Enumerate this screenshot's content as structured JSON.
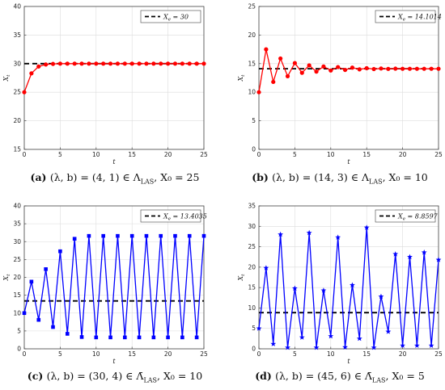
{
  "chart_data": [
    {
      "type": "line",
      "panel_label": "(a)",
      "caption": "(λ, b) = (4, 1) ∈ Λ_LAS, X₀ = 25",
      "xlabel": "t",
      "ylabel": "X_t",
      "xlim": [
        0,
        25
      ],
      "ylim": [
        15,
        40
      ],
      "xticks": [
        0,
        5,
        10,
        15,
        20,
        25
      ],
      "yticks": [
        15,
        20,
        25,
        30,
        35,
        40
      ],
      "grid": true,
      "legend_position": "top-right",
      "legend_label": "X_e = 30",
      "marker": "circle",
      "color": "#ff0000",
      "equilibrium": 30,
      "x": [
        0,
        1,
        2,
        3,
        4,
        5,
        6,
        7,
        8,
        9,
        10,
        11,
        12,
        13,
        14,
        15,
        16,
        17,
        18,
        19,
        20,
        21,
        22,
        23,
        24,
        25
      ],
      "values": [
        25,
        28.3,
        29.5,
        29.85,
        29.95,
        30,
        30,
        30,
        30,
        30,
        30,
        30,
        30,
        30,
        30,
        30,
        30,
        30,
        30,
        30,
        30,
        30,
        30,
        30,
        30,
        30
      ]
    },
    {
      "type": "line",
      "panel_label": "(b)",
      "caption": "(λ, b) = (14, 3) ∈ Λ_LAS, X₀ = 10",
      "xlabel": "t",
      "ylabel": "X_t",
      "xlim": [
        0,
        25
      ],
      "ylim": [
        0,
        25
      ],
      "xticks": [
        0,
        5,
        10,
        15,
        20,
        25
      ],
      "yticks": [
        0,
        5,
        10,
        15,
        20,
        25
      ],
      "grid": true,
      "legend_position": "top-right",
      "legend_label": "X_e = 14.1014",
      "marker": "circle",
      "color": "#ff0000",
      "equilibrium": 14.1014,
      "x": [
        0,
        1,
        2,
        3,
        4,
        5,
        6,
        7,
        8,
        9,
        10,
        11,
        12,
        13,
        14,
        15,
        16,
        17,
        18,
        19,
        20,
        21,
        22,
        23,
        24,
        25
      ],
      "values": [
        10,
        17.5,
        11.8,
        15.9,
        12.8,
        15.1,
        13.4,
        14.7,
        13.6,
        14.5,
        13.8,
        14.4,
        13.9,
        14.3,
        14.0,
        14.2,
        14.05,
        14.15,
        14.08,
        14.12,
        14.1,
        14.1,
        14.1,
        14.1,
        14.1,
        14.1
      ]
    },
    {
      "type": "line",
      "panel_label": "(c)",
      "caption": "(λ, b) = (30, 4) ∈ Λ̄_LAS, X₀ = 10",
      "xlabel": "t",
      "ylabel": "X_t",
      "xlim": [
        0,
        25
      ],
      "ylim": [
        0,
        40
      ],
      "xticks": [
        0,
        5,
        10,
        15,
        20,
        25
      ],
      "yticks": [
        0,
        5,
        10,
        15,
        20,
        25,
        30,
        35,
        40
      ],
      "grid": true,
      "legend_position": "top-right",
      "legend_label": "X_e = 13.4035",
      "marker": "square",
      "color": "#0000ff",
      "equilibrium": 13.4035,
      "x": [
        0,
        1,
        2,
        3,
        4,
        5,
        6,
        7,
        8,
        9,
        10,
        11,
        12,
        13,
        14,
        15,
        16,
        17,
        18,
        19,
        20,
        21,
        22,
        23,
        24,
        25
      ],
      "values": [
        10,
        18.8,
        8.1,
        22.3,
        6.1,
        27.3,
        4.2,
        30.8,
        3.3,
        31.6,
        3.2,
        31.6,
        3.2,
        31.6,
        3.2,
        31.6,
        3.2,
        31.6,
        3.2,
        31.6,
        3.2,
        31.6,
        3.2,
        31.6,
        3.2,
        31.6
      ]
    },
    {
      "type": "line",
      "panel_label": "(d)",
      "caption": "(λ, b) = (45, 6) ∈ Λ̄_LAS, X₀ = 5",
      "xlabel": "t",
      "ylabel": "X_t",
      "xlim": [
        0,
        25
      ],
      "ylim": [
        0,
        35
      ],
      "xticks": [
        0,
        5,
        10,
        15,
        20,
        25
      ],
      "yticks": [
        0,
        5,
        10,
        15,
        20,
        25,
        30,
        35
      ],
      "grid": true,
      "legend_position": "top-right",
      "legend_label": "X_e = 8.8597",
      "marker": "star",
      "color": "#0000ff",
      "equilibrium": 8.8597,
      "x": [
        0,
        1,
        2,
        3,
        4,
        5,
        6,
        7,
        8,
        9,
        10,
        11,
        12,
        13,
        14,
        15,
        16,
        17,
        18,
        19,
        20,
        21,
        22,
        23,
        24,
        25
      ],
      "values": [
        5,
        19.8,
        1.2,
        28,
        0.3,
        14.8,
        2.8,
        28.4,
        0.3,
        14.3,
        3.1,
        27.3,
        0.4,
        15.6,
        2.5,
        29.7,
        0.3,
        12.8,
        4.2,
        23.2,
        0.8,
        22.5,
        0.8,
        23.6,
        0.8,
        21.8
      ]
    }
  ]
}
